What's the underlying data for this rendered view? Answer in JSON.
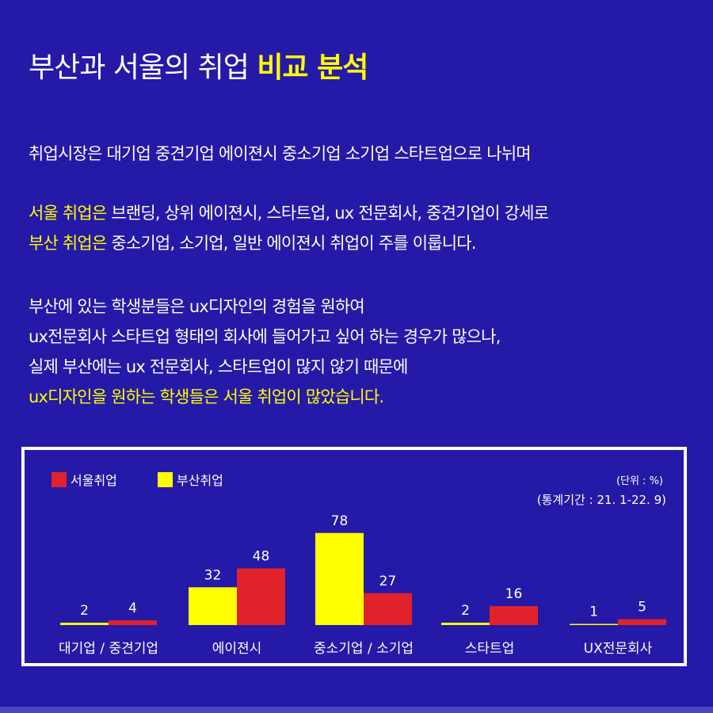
{
  "title": {
    "main": "부산과 서울의 취업",
    "highlight": "비교 분석"
  },
  "paragraphs": {
    "p1": "취업시장은 대기업  중견기업  에이젼시  중소기업  소기업  스타트업으로 나뉘며",
    "seoul_hl": "서울 취업은",
    "seoul_rest": " 브랜딩, 상위 에이젼시, 스타트업, ux 전문회사, 중견기업이 강세로",
    "busan_hl": "부산 취업은",
    "busan_rest": " 중소기업, 소기업, 일반 에이젼시 취업이 주를 이룹니다.",
    "l1": "부산에 있는 학생분들은 ux디자인의 경험을 원하여",
    "l2": "ux전문회사 스타트업 형태의 회사에 들어가고 싶어 하는 경우가 많으나,",
    "l3": "실제 부산에는 ux 전문회사, 스타트업이 많지 않기 때문에",
    "l4": "ux디자인을 원하는 학생들은 서울 취업이 많았습니다."
  },
  "chart_data": {
    "type": "bar",
    "categories": [
      "대기업 / 중견기업",
      "에이젼시",
      "중소기업 / 소기업",
      "스타트업",
      "UX전문회사"
    ],
    "series": [
      {
        "name": "부산취업",
        "color": "#ffff00",
        "values": [
          2,
          32,
          78,
          2,
          1
        ]
      },
      {
        "name": "서울취업",
        "color": "#e0232b",
        "values": [
          4,
          48,
          27,
          16,
          5
        ]
      }
    ],
    "legend": [
      {
        "name": "서울취업",
        "color": "#e0232b"
      },
      {
        "name": "부산취업",
        "color": "#ffff00"
      }
    ],
    "legend_position": "top-left",
    "unit_note": "(단위 : %)",
    "period_note": "(통계기간 : 21. 1-22. 9)",
    "grid": false,
    "ylim": [
      0,
      80
    ]
  }
}
